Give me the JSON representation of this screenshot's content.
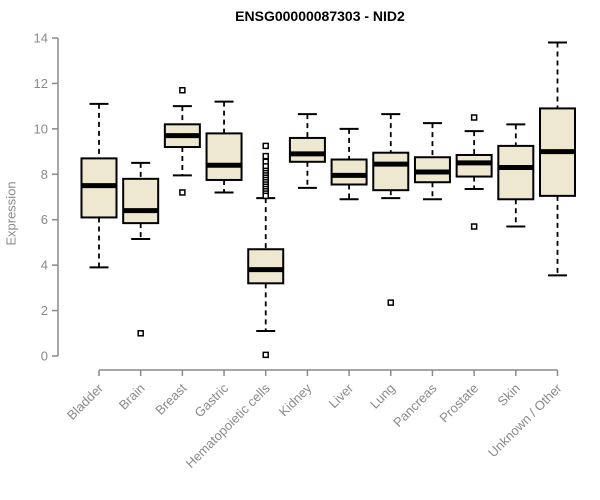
{
  "title": "ENSG00000087303 - NID2",
  "colors": {
    "box_fill": "#ede8cf",
    "box_stroke": "#000000",
    "median": "#000000",
    "whisker": "#000000",
    "outlier_fill": "#ffffff",
    "axis": "#8a8a8a",
    "tick_text": "#8a8a8a",
    "title_text": "#000000",
    "background": "#ffffff"
  },
  "chart_data": {
    "type": "boxplot",
    "title": "ENSG00000087303 - NID2",
    "xlabel": "",
    "ylabel": "Expression",
    "ylim": [
      0,
      14
    ],
    "yticks": [
      0,
      2,
      4,
      6,
      8,
      10,
      12,
      14
    ],
    "grid": false,
    "legend": false,
    "categories": [
      "Bladder",
      "Brain",
      "Breast",
      "Gastric",
      "Hematopoietic cells",
      "Kidney",
      "Liver",
      "Lung",
      "Pancreas",
      "Prostate",
      "Skin",
      "Unknown / Other"
    ],
    "boxes": [
      {
        "category": "Bladder",
        "whisker_low": 3.9,
        "q1": 6.1,
        "median": 7.5,
        "q3": 8.7,
        "whisker_high": 11.1,
        "outliers": []
      },
      {
        "category": "Brain",
        "whisker_low": 5.15,
        "q1": 5.85,
        "median": 6.4,
        "q3": 7.8,
        "whisker_high": 8.5,
        "outliers": [
          1.0
        ]
      },
      {
        "category": "Breast",
        "whisker_low": 7.95,
        "q1": 9.2,
        "median": 9.7,
        "q3": 10.2,
        "whisker_high": 11.0,
        "outliers": [
          11.7,
          7.2
        ]
      },
      {
        "category": "Gastric",
        "whisker_low": 7.2,
        "q1": 7.75,
        "median": 8.4,
        "q3": 9.8,
        "whisker_high": 11.2,
        "outliers": []
      },
      {
        "category": "Hematopoietic cells",
        "whisker_low": 1.1,
        "q1": 3.2,
        "median": 3.8,
        "q3": 4.7,
        "whisker_high": 6.95,
        "outliers": [
          9.25,
          8.8,
          8.55,
          8.35,
          8.15,
          8.05,
          7.95,
          7.85,
          7.75,
          7.65,
          7.55,
          7.45,
          7.35,
          7.25,
          7.15,
          7.05,
          0.05
        ]
      },
      {
        "category": "Kidney",
        "whisker_low": 7.4,
        "q1": 8.55,
        "median": 8.9,
        "q3": 9.6,
        "whisker_high": 10.65,
        "outliers": []
      },
      {
        "category": "Liver",
        "whisker_low": 6.9,
        "q1": 7.55,
        "median": 7.95,
        "q3": 8.65,
        "whisker_high": 10.0,
        "outliers": []
      },
      {
        "category": "Lung",
        "whisker_low": 6.95,
        "q1": 7.3,
        "median": 8.45,
        "q3": 8.95,
        "whisker_high": 10.65,
        "outliers": [
          2.35
        ]
      },
      {
        "category": "Pancreas",
        "whisker_low": 6.9,
        "q1": 7.65,
        "median": 8.1,
        "q3": 8.75,
        "whisker_high": 10.25,
        "outliers": []
      },
      {
        "category": "Prostate",
        "whisker_low": 7.35,
        "q1": 7.9,
        "median": 8.5,
        "q3": 8.85,
        "whisker_high": 9.9,
        "outliers": [
          10.5,
          5.7
        ]
      },
      {
        "category": "Skin",
        "whisker_low": 5.7,
        "q1": 6.9,
        "median": 8.3,
        "q3": 9.25,
        "whisker_high": 10.2,
        "outliers": []
      },
      {
        "category": "Unknown / Other",
        "whisker_low": 3.55,
        "q1": 7.05,
        "median": 9.0,
        "q3": 10.9,
        "whisker_high": 13.8,
        "outliers": []
      }
    ]
  }
}
